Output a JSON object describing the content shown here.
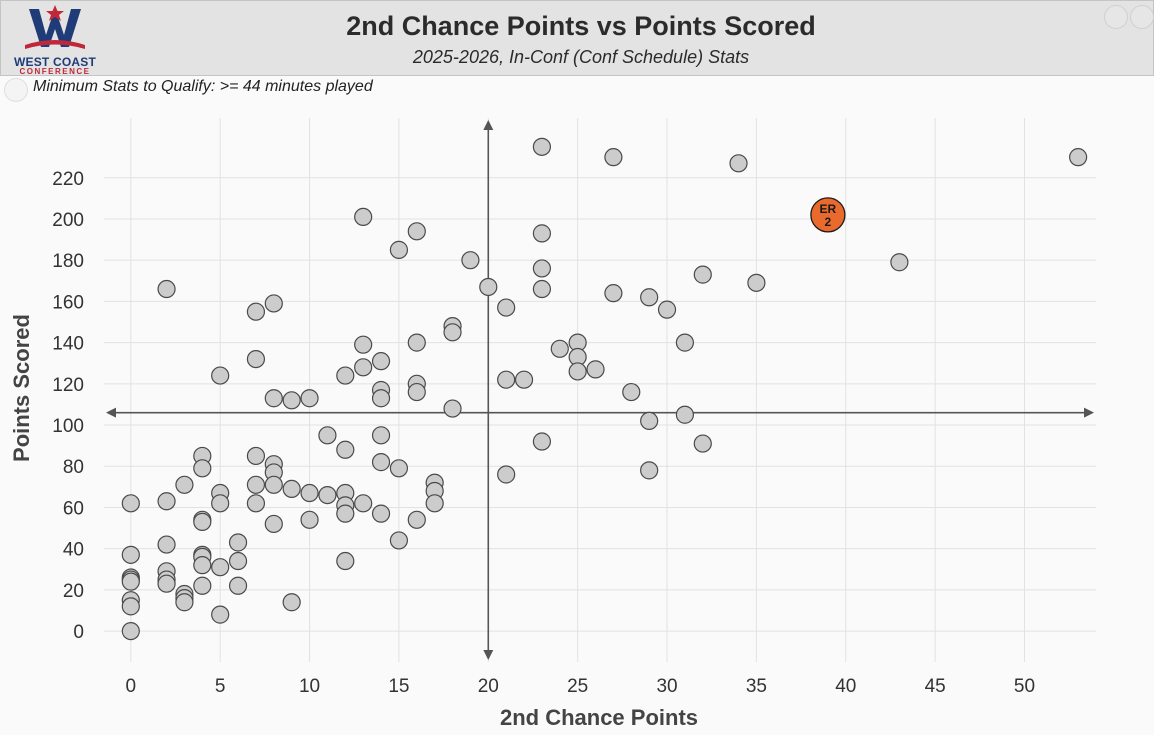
{
  "header": {
    "logo_line1": "WEST COAST",
    "logo_line2": "CONFERENCE",
    "title": "2nd Chance Points vs Points Scored",
    "subtitle": "2025-2026, In-Conf (Conf Schedule) Stats"
  },
  "qualify_text": "Minimum Stats to Qualify: >= 44 minutes played",
  "colors": {
    "point_fill": "#cccccc",
    "point_stroke": "#4a4a4a",
    "highlight_fill": "#ea6a2e",
    "crosshair": "#555555",
    "grid": "#e2e2e2",
    "logo_blue": "#1f3b78",
    "logo_red": "#c0283a"
  },
  "chart_data": {
    "type": "scatter",
    "xlabel": "2nd Chance Points",
    "ylabel": "Points Scored",
    "xlim": [
      -1.5,
      54
    ],
    "ylim": [
      -15,
      249
    ],
    "x_ticks": [
      0,
      5,
      10,
      15,
      20,
      25,
      30,
      35,
      40,
      45,
      50
    ],
    "y_ticks": [
      0,
      20,
      40,
      60,
      80,
      100,
      120,
      140,
      160,
      180,
      200,
      220
    ],
    "grid": true,
    "reference_lines": {
      "x": 20,
      "y": 106
    },
    "points": [
      [
        23,
        235
      ],
      [
        27,
        230
      ],
      [
        34,
        227
      ],
      [
        53,
        230
      ],
      [
        13,
        201
      ],
      [
        16,
        194
      ],
      [
        23,
        193
      ],
      [
        15,
        185
      ],
      [
        19,
        180
      ],
      [
        23,
        176
      ],
      [
        32,
        173
      ],
      [
        43,
        179
      ],
      [
        35,
        169
      ],
      [
        2,
        166
      ],
      [
        20,
        167
      ],
      [
        23,
        166
      ],
      [
        27,
        164
      ],
      [
        29,
        162
      ],
      [
        30,
        156
      ],
      [
        21,
        157
      ],
      [
        8,
        159
      ],
      [
        7,
        155
      ],
      [
        18,
        148
      ],
      [
        18,
        145
      ],
      [
        13,
        139
      ],
      [
        16,
        140
      ],
      [
        24,
        137
      ],
      [
        25,
        140
      ],
      [
        25,
        133
      ],
      [
        31,
        140
      ],
      [
        7,
        132
      ],
      [
        14,
        131
      ],
      [
        13,
        128
      ],
      [
        12,
        124
      ],
      [
        5,
        124
      ],
      [
        25,
        126
      ],
      [
        26,
        127
      ],
      [
        21,
        122
      ],
      [
        22,
        122
      ],
      [
        16,
        120
      ],
      [
        16,
        116
      ],
      [
        14,
        117
      ],
      [
        28,
        116
      ],
      [
        8,
        113
      ],
      [
        9,
        112
      ],
      [
        10,
        113
      ],
      [
        14,
        113
      ],
      [
        18,
        108
      ],
      [
        31,
        105
      ],
      [
        29,
        102
      ],
      [
        11,
        95
      ],
      [
        14,
        95
      ],
      [
        23,
        92
      ],
      [
        32,
        91
      ],
      [
        12,
        88
      ],
      [
        4,
        85
      ],
      [
        7,
        85
      ],
      [
        4,
        79
      ],
      [
        8,
        81
      ],
      [
        8,
        77
      ],
      [
        14,
        82
      ],
      [
        15,
        79
      ],
      [
        21,
        76
      ],
      [
        29,
        78
      ],
      [
        3,
        71
      ],
      [
        7,
        71
      ],
      [
        8,
        71
      ],
      [
        9,
        69
      ],
      [
        10,
        67
      ],
      [
        11,
        66
      ],
      [
        12,
        67
      ],
      [
        17,
        72
      ],
      [
        17,
        68
      ],
      [
        0,
        62
      ],
      [
        2,
        63
      ],
      [
        5,
        67
      ],
      [
        5,
        62
      ],
      [
        7,
        62
      ],
      [
        13,
        62
      ],
      [
        12,
        61
      ],
      [
        12,
        57
      ],
      [
        14,
        57
      ],
      [
        17,
        62
      ],
      [
        4,
        54
      ],
      [
        4,
        53
      ],
      [
        8,
        52
      ],
      [
        10,
        54
      ],
      [
        16,
        54
      ],
      [
        15,
        44
      ],
      [
        2,
        42
      ],
      [
        6,
        43
      ],
      [
        0,
        37
      ],
      [
        4,
        37
      ],
      [
        4,
        36
      ],
      [
        6,
        34
      ],
      [
        12,
        34
      ],
      [
        4,
        32
      ],
      [
        5,
        31
      ],
      [
        2,
        29
      ],
      [
        0,
        26
      ],
      [
        0,
        25
      ],
      [
        0,
        24
      ],
      [
        2,
        25
      ],
      [
        2,
        23
      ],
      [
        4,
        22
      ],
      [
        6,
        22
      ],
      [
        3,
        18
      ],
      [
        3,
        16
      ],
      [
        3,
        14
      ],
      [
        0,
        15
      ],
      [
        0,
        12
      ],
      [
        9,
        14
      ],
      [
        5,
        8
      ],
      [
        0,
        0
      ]
    ],
    "highlight": {
      "x": 39,
      "y": 202,
      "label_line1": "ER",
      "label_line2": "2"
    }
  }
}
